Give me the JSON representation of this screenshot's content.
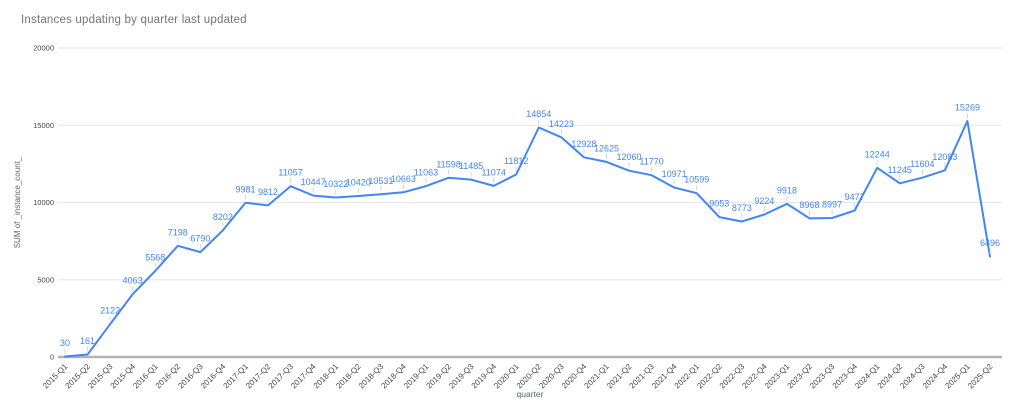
{
  "chart_data": {
    "type": "line",
    "title": "Instances updating by quarter last updated",
    "xlabel": "quarter",
    "ylabel": "SUM of _instance_count_",
    "categories": [
      "2015-Q1",
      "2015-Q2",
      "2015-Q3",
      "2015-Q4",
      "2016-Q1",
      "2016-Q2",
      "2016-Q3",
      "2016-Q4",
      "2017-Q1",
      "2017-Q2",
      "2017-Q3",
      "2017-Q4",
      "2018-Q1",
      "2018-Q2",
      "2018-Q3",
      "2018-Q4",
      "2019-Q1",
      "2019-Q2",
      "2019-Q3",
      "2019-Q4",
      "2020-Q1",
      "2020-Q2",
      "2020-Q3",
      "2020-Q4",
      "2021-Q1",
      "2021-Q2",
      "2021-Q3",
      "2021-Q4",
      "2022-Q1",
      "2022-Q2",
      "2022-Q3",
      "2022-Q4",
      "2023-Q1",
      "2023-Q2",
      "2023-Q3",
      "2023-Q4",
      "2024-Q1",
      "2024-Q2",
      "2024-Q3",
      "2024-Q4",
      "2025-Q1",
      "2025-Q2"
    ],
    "values": [
      30,
      161,
      2122,
      4063,
      5568,
      7198,
      6790,
      8202,
      9981,
      9812,
      11057,
      10447,
      10322,
      10420,
      10531,
      10663,
      11063,
      11598,
      11485,
      11074,
      11812,
      14854,
      14223,
      12928,
      12625,
      12060,
      11770,
      10971,
      10599,
      9053,
      8773,
      9224,
      9918,
      8968,
      8997,
      9477,
      12244,
      11245,
      11604,
      12083,
      15269,
      6496
    ],
    "y_ticks": [
      0,
      5000,
      10000,
      15000,
      20000
    ],
    "ylim": [
      0,
      20000
    ],
    "grid": true,
    "legend": "none",
    "point_labels": true,
    "x_label_rotation": -45
  },
  "colors": {
    "series_line": "#4285f4",
    "point_label": "#4285f4",
    "title_text": "#757575",
    "axis_tick_text": "#444444",
    "axis_title_text": "#5f6368",
    "gridline": "#e6e6e6",
    "axis_baseline": "#b3b3b3",
    "leader_line": "#cccccc",
    "background": "#ffffff"
  }
}
